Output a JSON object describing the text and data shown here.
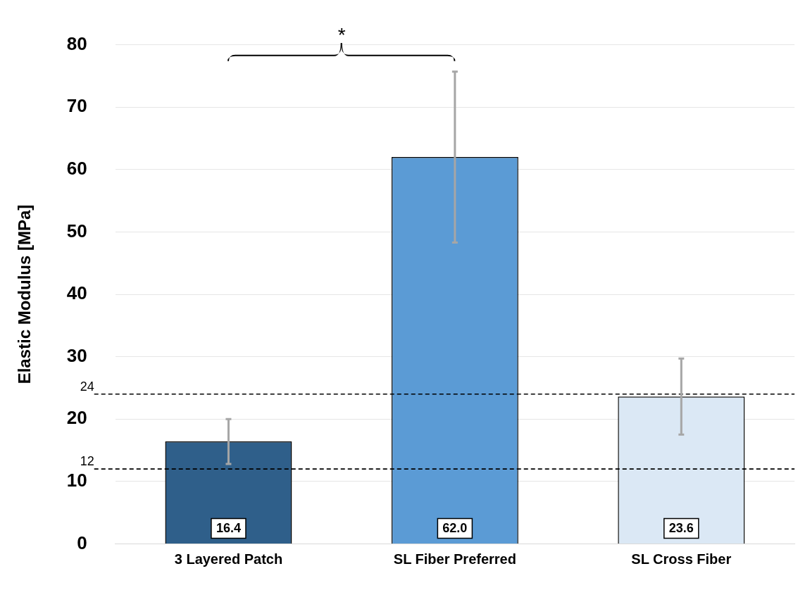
{
  "chart_data": {
    "type": "bar",
    "ylabel": "Elastic Modulus [MPa]",
    "categories": [
      "3 Layered Patch",
      "SL Fiber Preferred",
      "SL Cross Fiber"
    ],
    "values": [
      16.4,
      62.0,
      23.6
    ],
    "colors": [
      "#2f5f8a",
      "#5b9bd5",
      "#dbe8f5"
    ],
    "errors": [
      3.6,
      13.7,
      6.1
    ],
    "value_labels": [
      "16.4",
      "62.0",
      "23.6"
    ],
    "ylim": [
      0,
      80
    ],
    "yticks": [
      0,
      10,
      20,
      30,
      40,
      50,
      60,
      70,
      80
    ],
    "grid": "y",
    "legend": false,
    "ref_lines": [
      {
        "axis": "y",
        "value": 24,
        "label": "24",
        "color": "#000000",
        "line_style": "dashed"
      },
      {
        "axis": "y",
        "value": 12,
        "label": "12",
        "color": "#000000",
        "line_style": "dashed"
      }
    ],
    "annotations": [
      "*"
    ]
  }
}
